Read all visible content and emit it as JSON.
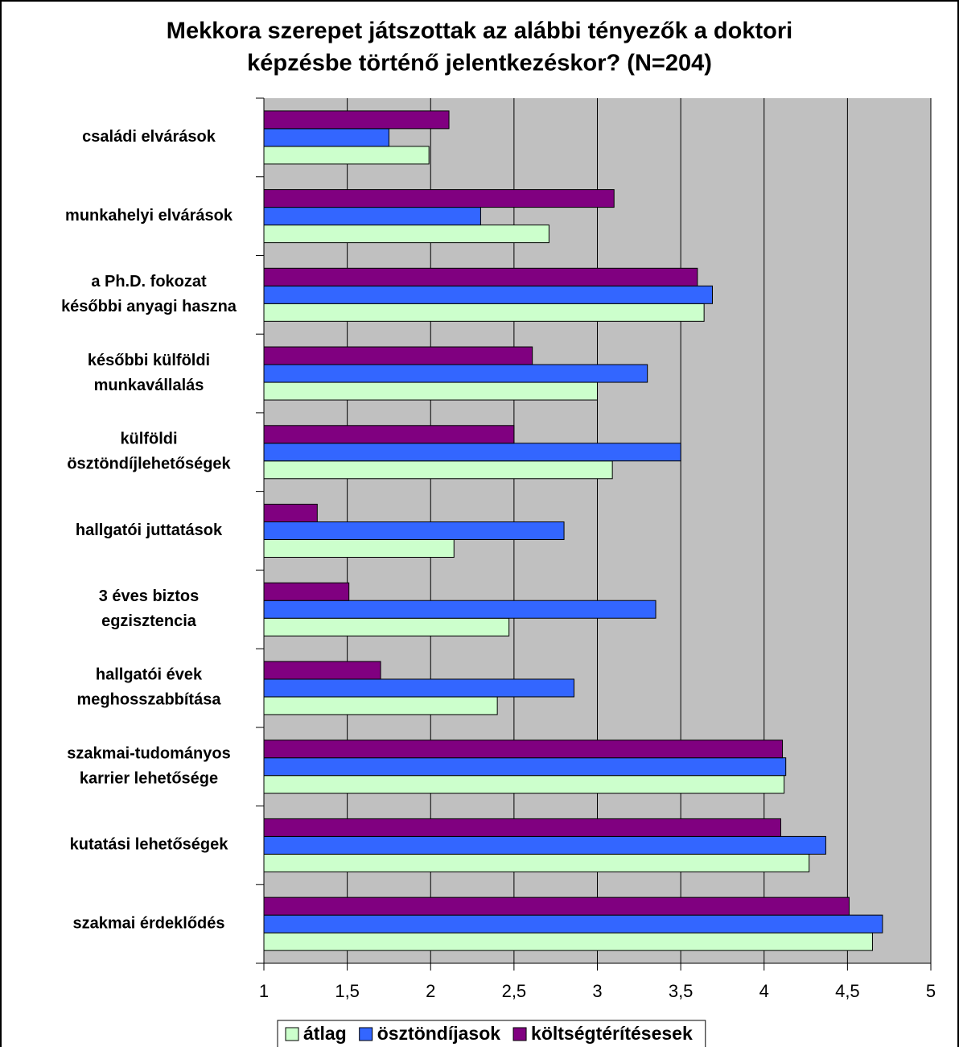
{
  "chart_data": {
    "type": "hbar",
    "title": [
      "Mekkora szerepet játszottak az alábbi tényezők a doktori",
      "képzésbe történő jelentkezéskor? (N=204)"
    ],
    "categories": [
      [
        "családi elvárások"
      ],
      [
        "munkahelyi elvárások"
      ],
      [
        "a Ph.D. fokozat",
        "későbbi anyagi haszna"
      ],
      [
        "későbbi külföldi",
        "munkavállalás"
      ],
      [
        "külföldi",
        "ösztöndíjlehetőségek"
      ],
      [
        "hallgatói juttatások"
      ],
      [
        "3 éves biztos",
        "egzisztencia"
      ],
      [
        "hallgatói évek",
        "meghosszabbítása"
      ],
      [
        "szakmai-tudományos",
        "karrier lehetősége"
      ],
      [
        "kutatási lehetőségek"
      ],
      [
        "szakmai érdeklődés"
      ]
    ],
    "series": [
      {
        "name": "átlag",
        "color": "#ccffcc",
        "values": [
          1.99,
          2.71,
          3.64,
          3.0,
          3.09,
          2.14,
          2.47,
          2.4,
          4.12,
          4.27,
          4.65
        ]
      },
      {
        "name": "ösztöndíjasok",
        "color": "#3366ff",
        "values": [
          1.75,
          2.3,
          3.69,
          3.3,
          3.5,
          2.8,
          3.35,
          2.86,
          4.13,
          4.37,
          4.71
        ]
      },
      {
        "name": "költségtérítésesek",
        "color": "#800080",
        "values": [
          2.11,
          3.1,
          3.6,
          2.61,
          2.5,
          1.32,
          1.51,
          1.7,
          4.11,
          4.1,
          4.51
        ]
      }
    ],
    "xlim": [
      1,
      5
    ],
    "xticks": [
      1,
      {
        "value": 1.5,
        "label": "1,5"
      },
      2,
      {
        "value": 2.5,
        "label": "2,5"
      },
      3,
      {
        "value": 3.5,
        "label": "3,5"
      },
      4,
      {
        "value": 4.5,
        "label": "4,5"
      },
      5
    ],
    "grid": true,
    "plot_background": "#c0c0c0",
    "legend": "bottom"
  }
}
